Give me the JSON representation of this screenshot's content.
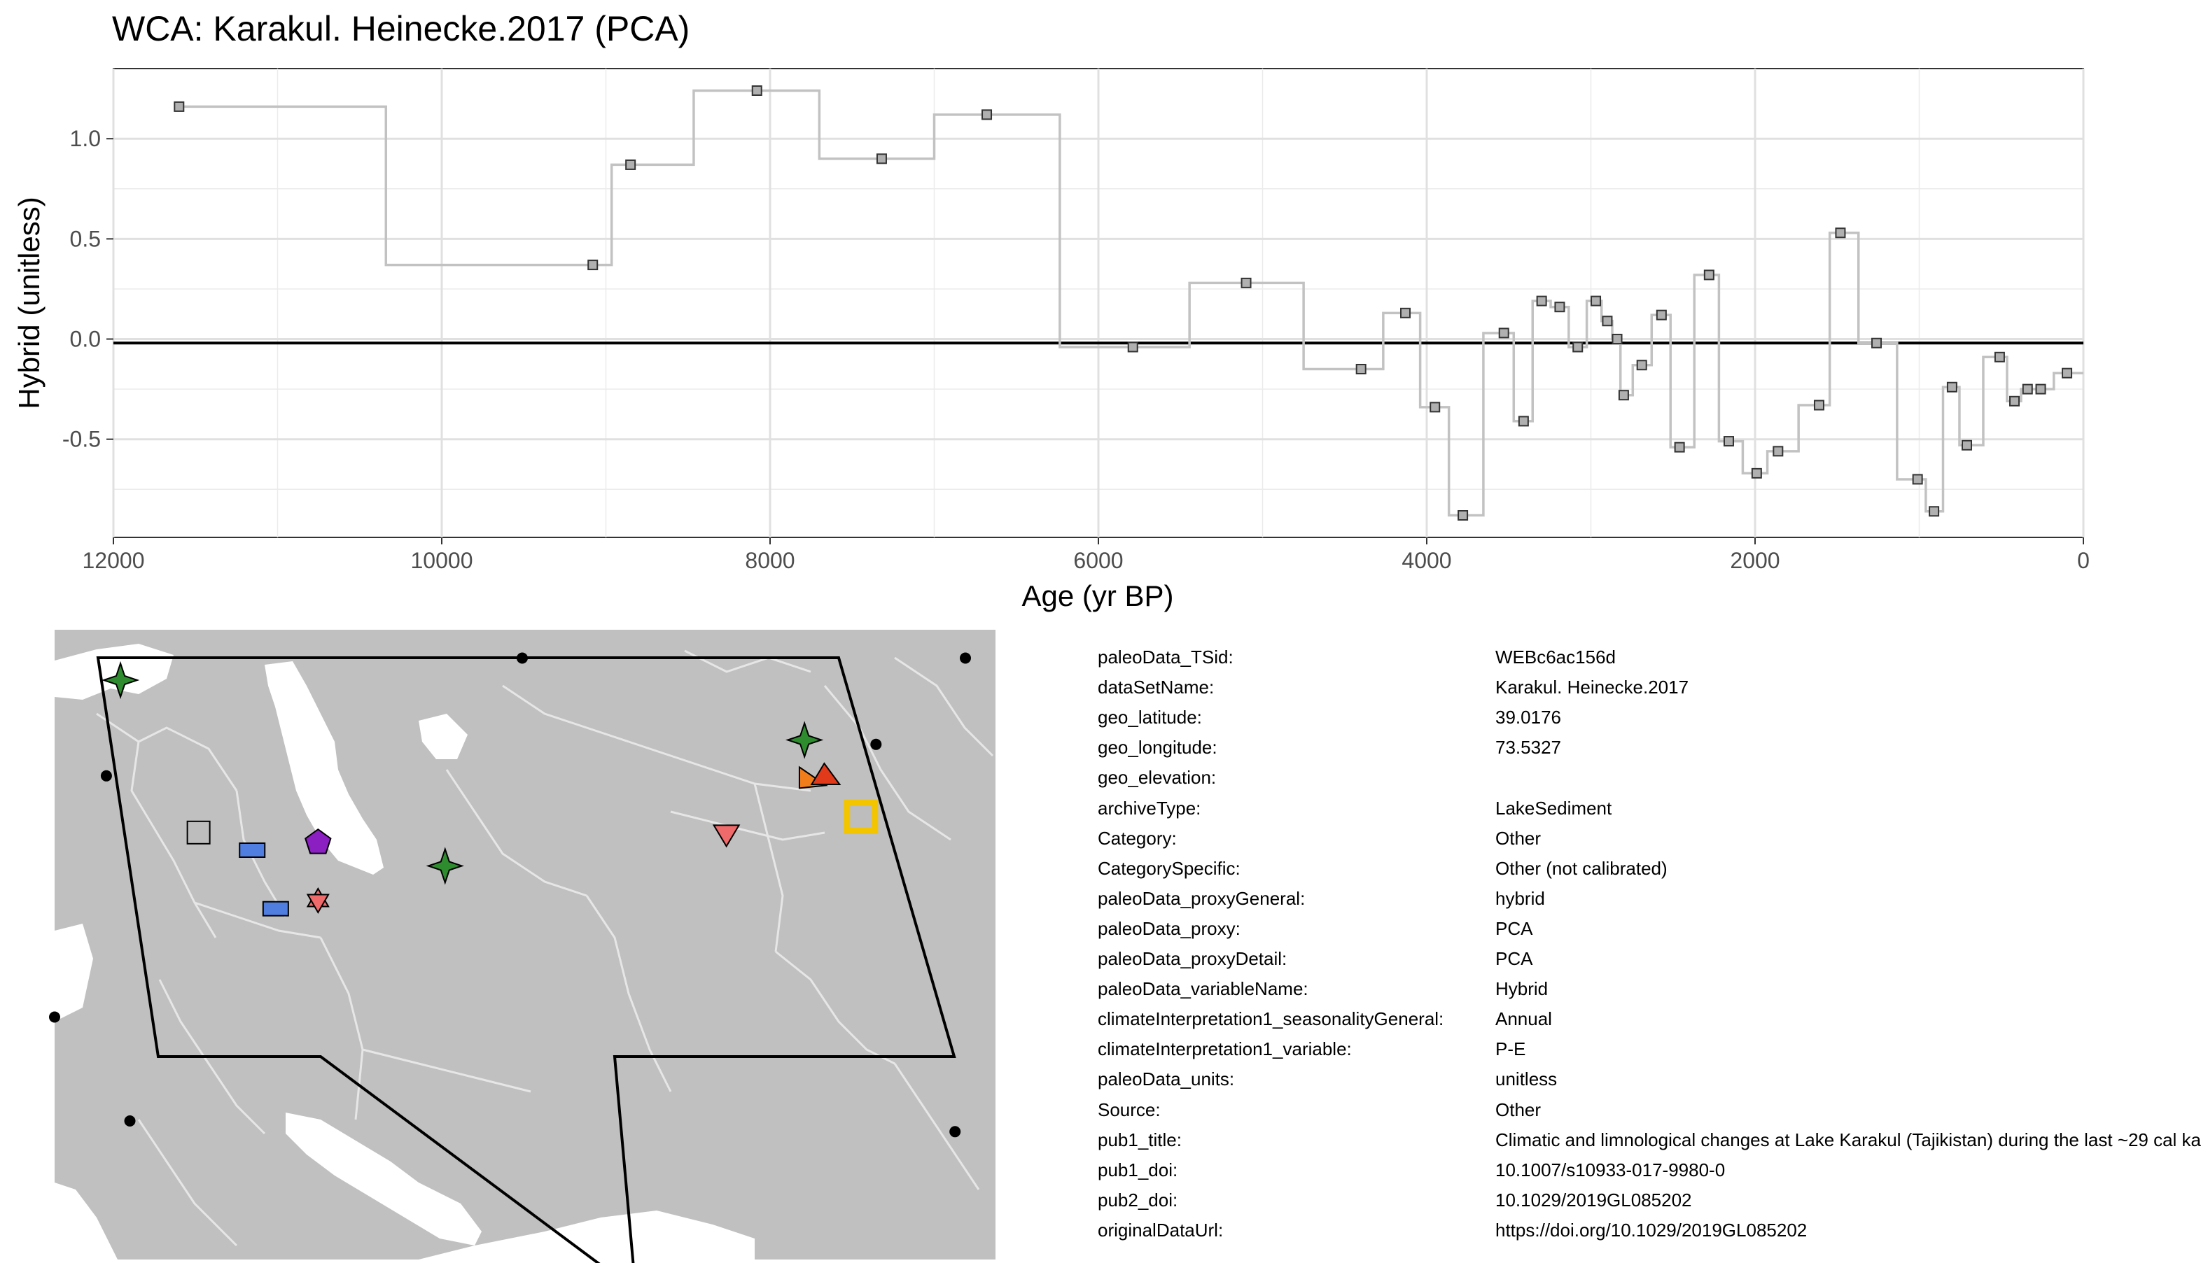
{
  "chart_data": {
    "type": "line",
    "title": "WCA: Karakul. Heinecke.2017 (PCA)",
    "xlabel": "Age (yr BP)",
    "ylabel": "Hybrid (unitless)",
    "xlim": [
      12000,
      0
    ],
    "ylim": [
      -0.99,
      1.35
    ],
    "x_reversed": true,
    "x_ticks": [
      12000,
      10000,
      8000,
      6000,
      4000,
      2000,
      0
    ],
    "y_ticks": [
      1.0,
      0.5,
      0.0,
      -0.5
    ],
    "y_tick_labels": [
      "1.0",
      "0.5",
      "0.0",
      "-0.5"
    ],
    "x_tick_labels": [
      "12000",
      "10000",
      "8000",
      "6000",
      "4000",
      "2000",
      "0"
    ],
    "grid": true,
    "reference_line": {
      "y": -0.02
    },
    "series": [
      {
        "style": "step",
        "x": [
          11600,
          9080,
          8850,
          8080,
          7320,
          6680,
          5790,
          5100,
          4400,
          4130,
          3950,
          3780,
          3530,
          3410,
          3300,
          3190,
          3080,
          2970,
          2900,
          2840,
          2800,
          2690,
          2570,
          2460,
          2280,
          2160,
          1990,
          1860,
          1610,
          1480,
          1260,
          1010,
          910,
          800,
          710,
          510,
          420,
          340,
          260,
          100
        ],
        "y": [
          1.16,
          0.37,
          0.87,
          1.24,
          0.9,
          1.12,
          -0.04,
          0.28,
          -0.15,
          0.13,
          -0.34,
          -0.88,
          0.03,
          -0.41,
          0.19,
          0.16,
          -0.04,
          0.19,
          0.09,
          0.0,
          -0.28,
          -0.13,
          0.12,
          -0.54,
          0.32,
          -0.51,
          -0.67,
          -0.56,
          -0.33,
          0.53,
          -0.02,
          -0.7,
          -0.86,
          -0.24,
          -0.53,
          -0.09,
          -0.31,
          -0.25,
          -0.25,
          -0.17
        ]
      }
    ],
    "colors": {
      "line": "#c2c2c2",
      "marker_fill": "#b0b0b0",
      "reference": "#000000",
      "grid": "#ebebeb"
    }
  },
  "map": {
    "colors": {
      "land": "#c0c0c0",
      "water": "#ffffff",
      "borders": "#e6e6e6",
      "region": "#000000",
      "highlight": "#f2c500"
    },
    "markers": [
      {
        "name": "star-green-nw",
        "shape": "star4",
        "color": "#2e8b2e",
        "lon": 0.07,
        "lat": 0.08
      },
      {
        "name": "star-green-ne",
        "shape": "star4",
        "color": "#2e8b2e",
        "lon": 0.797,
        "lat": 0.175
      },
      {
        "name": "star-green-center",
        "shape": "star4",
        "color": "#2e8b2e",
        "lon": 0.415,
        "lat": 0.375
      },
      {
        "name": "square-grey",
        "shape": "square",
        "color": "#bdbdbd",
        "lon": 0.153,
        "lat": 0.322
      },
      {
        "name": "rect-blue-1",
        "shape": "rect",
        "color": "#4f7ee0",
        "lon": 0.21,
        "lat": 0.35
      },
      {
        "name": "rect-blue-2",
        "shape": "rect",
        "color": "#4f7ee0",
        "lon": 0.235,
        "lat": 0.443
      },
      {
        "name": "pentagon-purple",
        "shape": "pentagon",
        "color": "#8b1fc2",
        "lon": 0.28,
        "lat": 0.338
      },
      {
        "name": "star6-salmon",
        "shape": "star6",
        "color": "#ef6a6a",
        "lon": 0.28,
        "lat": 0.43
      },
      {
        "name": "triangle-down-salmon",
        "shape": "tridown",
        "color": "#ef6a6a",
        "lon": 0.714,
        "lat": 0.326
      },
      {
        "name": "triangle-orange",
        "shape": "triright",
        "color": "#f07d1a",
        "lon": 0.805,
        "lat": 0.236
      },
      {
        "name": "triangle-red",
        "shape": "triup",
        "color": "#e03a1a",
        "lon": 0.818,
        "lat": 0.23
      },
      {
        "name": "target-square-yellow",
        "shape": "hollowsquare",
        "color": "#f2c500",
        "lon": 0.857,
        "lat": 0.297
      }
    ],
    "dots": [
      {
        "lon": 0.497,
        "lat": 0.045
      },
      {
        "lon": 0.968,
        "lat": 0.045
      },
      {
        "lon": 0.055,
        "lat": 0.232
      },
      {
        "lon": 0.873,
        "lat": 0.182
      },
      {
        "lon": 0.0,
        "lat": 0.615
      },
      {
        "lon": 0.08,
        "lat": 0.78
      },
      {
        "lon": 0.957,
        "lat": 0.797
      }
    ]
  },
  "metadata": [
    {
      "key": "paleoData_TSid:",
      "value": "WEBc6ac156d"
    },
    {
      "key": "dataSetName:",
      "value": "Karakul. Heinecke.2017"
    },
    {
      "key": "geo_latitude:",
      "value": "39.0176"
    },
    {
      "key": "geo_longitude:",
      "value": "73.5327"
    },
    {
      "key": "geo_elevation:",
      "value": ""
    },
    {
      "key": "archiveType:",
      "value": "LakeSediment"
    },
    {
      "key": "Category:",
      "value": "Other"
    },
    {
      "key": "CategorySpecific:",
      "value": "Other (not calibrated)"
    },
    {
      "key": "paleoData_proxyGeneral:",
      "value": "hybrid"
    },
    {
      "key": "paleoData_proxy:",
      "value": "PCA"
    },
    {
      "key": "paleoData_proxyDetail:",
      "value": "PCA"
    },
    {
      "key": "paleoData_variableName:",
      "value": "Hybrid"
    },
    {
      "key": "climateInterpretation1_seasonalityGeneral:",
      "value": "Annual"
    },
    {
      "key": "climateInterpretation1_variable:",
      "value": "P-E"
    },
    {
      "key": "paleoData_units:",
      "value": "unitless"
    },
    {
      "key": "Source:",
      "value": "Other"
    },
    {
      "key": "pub1_title:",
      "value": "Climatic and limnological changes at Lake Karakul (Tajikistan) during the last ~29 cal ka"
    },
    {
      "key": "pub1_doi:",
      "value": "10.1007/s10933-017-9980-0"
    },
    {
      "key": "pub2_doi:",
      "value": "10.1029/2019GL085202"
    },
    {
      "key": "originalDataUrl:",
      "value": "https://doi.org/10.1029/2019GL085202"
    }
  ]
}
